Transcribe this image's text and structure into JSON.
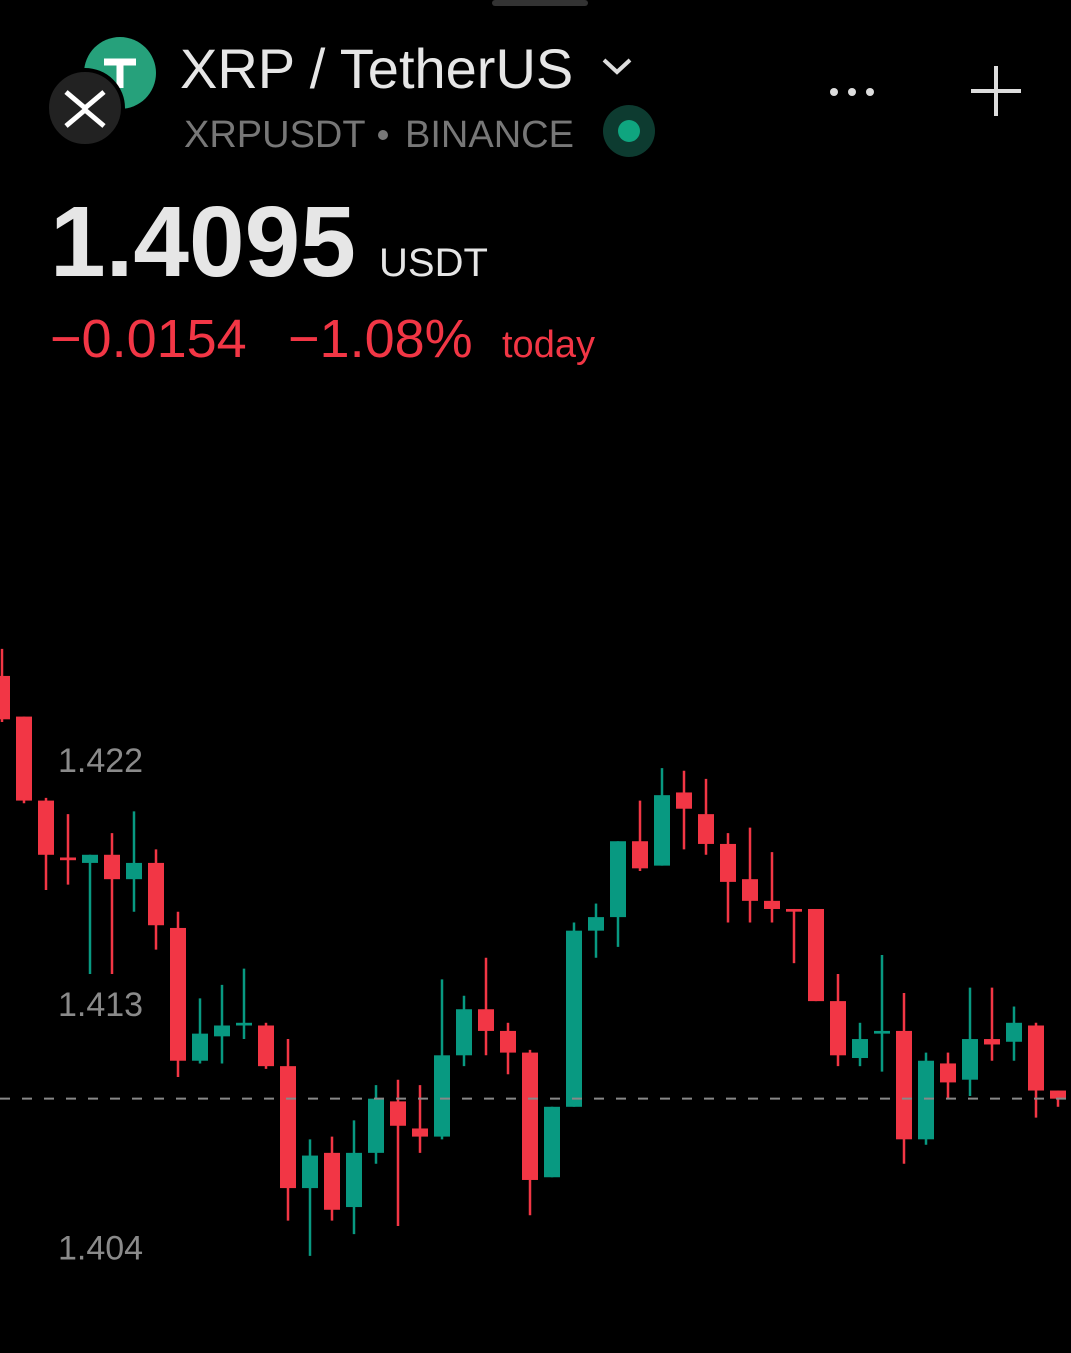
{
  "header": {
    "title": "XRP / TetherUS",
    "symbol": "XRPUSDT",
    "exchange": "BINANCE",
    "price": 1.4095,
    "currency": "USDT",
    "change": "−0.0154",
    "change_percent": "−1.08%",
    "period": "today"
  },
  "chart_data": {
    "type": "candlestick",
    "up_color": "#089981",
    "down_color": "#f23645",
    "ylim": [
      1.401,
      1.4265
    ],
    "yticks": [
      1.404,
      1.413,
      1.422
    ],
    "open": [
      1.4251,
      1.4236,
      1.4205,
      1.4184,
      1.4182,
      1.4185,
      1.4176,
      1.4182,
      1.4158,
      1.4109,
      1.4118,
      1.4122,
      1.4122,
      1.4107,
      1.4062,
      1.4075,
      1.4055,
      1.4075,
      1.4094,
      1.4084,
      1.4081,
      1.4111,
      1.4128,
      1.412,
      1.4112,
      1.4066,
      1.4092,
      1.4157,
      1.4162,
      1.419,
      1.4181,
      1.4208,
      1.42,
      1.4189,
      1.4176,
      1.4168,
      1.4165,
      1.4165,
      1.4131,
      1.411,
      1.4119,
      1.412,
      1.408,
      1.4108,
      1.4102,
      1.4117,
      1.4116,
      1.4122,
      1.4098
    ],
    "high": [
      1.4261,
      1.4236,
      1.4206,
      1.42,
      1.4185,
      1.4193,
      1.4201,
      1.4187,
      1.4164,
      1.4132,
      1.4137,
      1.4143,
      1.4123,
      1.4117,
      1.408,
      1.4081,
      1.4087,
      1.41,
      1.4102,
      1.41,
      1.4139,
      1.4133,
      1.4147,
      1.4123,
      1.4113,
      1.4092,
      1.416,
      1.4167,
      1.419,
      1.4205,
      1.4217,
      1.4216,
      1.4213,
      1.4193,
      1.4195,
      1.4186,
      1.4165,
      1.4165,
      1.4141,
      1.4123,
      1.4148,
      1.4134,
      1.4112,
      1.4112,
      1.4136,
      1.4136,
      1.4129,
      1.4123,
      1.4098
    ],
    "low": [
      1.4234,
      1.4204,
      1.4172,
      1.4174,
      1.4141,
      1.4141,
      1.4164,
      1.415,
      1.4103,
      1.4108,
      1.4108,
      1.4117,
      1.4106,
      1.405,
      1.4037,
      1.405,
      1.4045,
      1.4071,
      1.4048,
      1.4075,
      1.408,
      1.4107,
      1.4111,
      1.4104,
      1.4052,
      1.4066,
      1.4092,
      1.4147,
      1.4151,
      1.4179,
      1.4181,
      1.4187,
      1.4185,
      1.416,
      1.416,
      1.416,
      1.4145,
      1.4131,
      1.4107,
      1.4107,
      1.4105,
      1.4071,
      1.4078,
      1.4095,
      1.4096,
      1.4109,
      1.4109,
      1.4088,
      1.4092
    ],
    "close": [
      1.4235,
      1.4205,
      1.4185,
      1.4183,
      1.4185,
      1.4176,
      1.4182,
      1.4159,
      1.4109,
      1.4119,
      1.4122,
      1.4123,
      1.4107,
      1.4062,
      1.4074,
      1.4054,
      1.4075,
      1.4095,
      1.4085,
      1.4081,
      1.4111,
      1.4128,
      1.412,
      1.4112,
      1.4065,
      1.4092,
      1.4157,
      1.4162,
      1.419,
      1.418,
      1.4207,
      1.4202,
      1.4189,
      1.4175,
      1.4168,
      1.4165,
      1.4164,
      1.4131,
      1.4111,
      1.4117,
      1.412,
      1.408,
      1.4109,
      1.4101,
      1.4117,
      1.4115,
      1.4123,
      1.4098,
      1.4095
    ]
  }
}
